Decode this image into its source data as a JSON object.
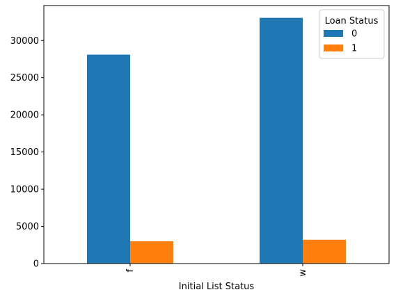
{
  "chart_data": {
    "type": "bar",
    "title": "",
    "xlabel": "Initial List Status",
    "ylabel": "",
    "categories": [
      "f",
      "w"
    ],
    "series": [
      {
        "name": "0",
        "values": [
          28100,
          33050
        ],
        "color": "#1f77b4"
      },
      {
        "name": "1",
        "values": [
          3000,
          3200
        ],
        "color": "#ff7f0e"
      }
    ],
    "ylim": [
      0,
      34700
    ],
    "yticks": [
      0,
      5000,
      10000,
      15000,
      20000,
      25000,
      30000
    ],
    "x_tick_rotation": 90,
    "grid": false,
    "legend": {
      "title": "Loan Status",
      "placement": "top-right"
    }
  }
}
